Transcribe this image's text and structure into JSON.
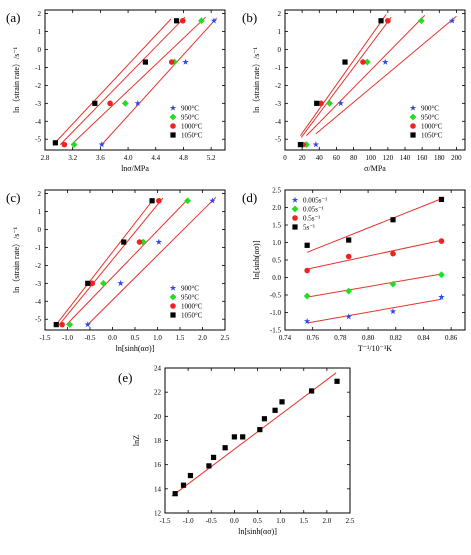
{
  "colors": {
    "fit_line": "#e8322b",
    "axis": "#000000",
    "series_blue": "#3344ee",
    "series_green": "#22dd22",
    "series_red": "#ee2222",
    "series_black": "#000000"
  },
  "chart_data": [
    {
      "id": "a",
      "type": "scatter",
      "panel_label": "(a)",
      "xlabel": "lnσ/MPa",
      "ylabel": "ln（strain rate）/s⁻¹",
      "xlim": [
        2.8,
        5.4
      ],
      "ylim": [
        -5.6,
        2.2
      ],
      "xticks": [
        2.8,
        3.2,
        3.6,
        4.0,
        4.4,
        4.8,
        5.2
      ],
      "xtick_labels": [
        "2.8",
        "3.2",
        "3.6",
        "4.0",
        "4.4",
        "4.8",
        "5.2"
      ],
      "yticks": [
        -5,
        -4,
        -3,
        -2,
        -1,
        0,
        1,
        2
      ],
      "ytick_labels": [
        "-5",
        "-4",
        "-3",
        "-2",
        "-1",
        "0",
        "1",
        "2"
      ],
      "legend_position": "bottom-right",
      "series": [
        {
          "name": "900°C",
          "color": "#3344ee",
          "marker": "star",
          "x": [
            3.62,
            4.14,
            4.83,
            5.24
          ],
          "y": [
            -5.3,
            -3.0,
            -0.7,
            1.6
          ],
          "fit": [
            [
              3.62,
              -5.3
            ],
            [
              5.28,
              1.75
            ]
          ]
        },
        {
          "name": "950°C",
          "color": "#22dd22",
          "marker": "diamond",
          "x": [
            3.22,
            3.96,
            4.67,
            5.06
          ],
          "y": [
            -5.3,
            -3.0,
            -0.7,
            1.6
          ],
          "fit": [
            [
              3.18,
              -5.3
            ],
            [
              5.12,
              1.8
            ]
          ]
        },
        {
          "name": "1000°C",
          "color": "#ee2222",
          "marker": "circle",
          "x": [
            3.08,
            3.74,
            4.63,
            4.79
          ],
          "y": [
            -5.3,
            -3.0,
            -0.7,
            1.6
          ],
          "fit": [
            [
              3.02,
              -5.3
            ],
            [
              4.82,
              1.8
            ]
          ]
        },
        {
          "name": "1050°C",
          "color": "#000000",
          "marker": "square",
          "x": [
            2.95,
            3.52,
            4.25,
            4.7
          ],
          "y": [
            -5.2,
            -3.0,
            -0.7,
            1.6
          ],
          "fit": [
            [
              2.92,
              -5.3
            ],
            [
              4.62,
              1.7
            ]
          ]
        }
      ]
    },
    {
      "id": "b",
      "type": "scatter",
      "panel_label": "(b)",
      "xlabel": "σ/MPa",
      "ylabel": "ln（strain rate）/s⁻¹",
      "xlim": [
        0,
        210
      ],
      "ylim": [
        -5.6,
        2.2
      ],
      "xticks": [
        0,
        20,
        40,
        60,
        80,
        100,
        120,
        140,
        160,
        180,
        200
      ],
      "xtick_labels": [
        "0",
        "20",
        "40",
        "60",
        "80",
        "100",
        "120",
        "140",
        "160",
        "180",
        "200"
      ],
      "yticks": [
        -5,
        -4,
        -3,
        -2,
        -1,
        0,
        1,
        2
      ],
      "ytick_labels": [
        "-5",
        "-4",
        "-3",
        "-2",
        "-1",
        "0",
        "1",
        "2"
      ],
      "legend_position": "bottom-right",
      "series": [
        {
          "name": "900°C",
          "color": "#3344ee",
          "marker": "star",
          "x": [
            36,
            65,
            117,
            195
          ],
          "y": [
            -5.3,
            -3.0,
            -0.7,
            1.6
          ],
          "fit": [
            [
              36,
              -4.7
            ],
            [
              200,
              1.85
            ]
          ]
        },
        {
          "name": "950°C",
          "color": "#22dd22",
          "marker": "diamond",
          "x": [
            25,
            52,
            96,
            159
          ],
          "y": [
            -5.3,
            -3.0,
            -0.7,
            1.6
          ],
          "fit": [
            [
              25,
              -4.8
            ],
            [
              163,
              1.9
            ]
          ]
        },
        {
          "name": "1000°C",
          "color": "#ee2222",
          "marker": "circle",
          "x": [
            21,
            42,
            91,
            120
          ],
          "y": [
            -5.3,
            -3.0,
            -0.7,
            1.6
          ],
          "fit": [
            [
              19,
              -4.9
            ],
            [
              124,
              1.8
            ]
          ]
        },
        {
          "name": "1050°C",
          "color": "#000000",
          "marker": "square",
          "x": [
            18,
            37,
            70,
            112
          ],
          "y": [
            -5.3,
            -3.0,
            -0.7,
            1.6
          ],
          "fit": [
            [
              18,
              -4.8
            ],
            [
              118,
              1.95
            ]
          ]
        }
      ]
    },
    {
      "id": "c",
      "type": "scatter",
      "panel_label": "(c)",
      "xlabel": "ln[sinh(ασ)]",
      "ylabel": "ln（strain rate）/s⁻¹",
      "xlim": [
        -1.5,
        2.5
      ],
      "ylim": [
        -5.6,
        2.2
      ],
      "xticks": [
        -1.5,
        -1.0,
        -0.5,
        0.0,
        0.5,
        1.0,
        1.5,
        2.0,
        2.5
      ],
      "xtick_labels": [
        "-1.5",
        "-1.0",
        "-0.5",
        "0.0",
        "0.5",
        "1.0",
        "1.5",
        "2.0",
        "2.5"
      ],
      "yticks": [
        -5,
        -4,
        -3,
        -2,
        -1,
        0,
        1,
        2
      ],
      "ytick_labels": [
        "-5",
        "-4",
        "-3",
        "-2",
        "-1",
        "0",
        "1",
        "2"
      ],
      "legend_position": "bottom-right",
      "series": [
        {
          "name": "900°C",
          "color": "#3344ee",
          "marker": "star",
          "x": [
            -0.55,
            0.18,
            1.03,
            2.22
          ],
          "y": [
            -5.3,
            -3.0,
            -0.7,
            1.6
          ],
          "fit": [
            [
              -0.55,
              -5.3
            ],
            [
              2.3,
              1.8
            ]
          ]
        },
        {
          "name": "950°C",
          "color": "#22dd22",
          "marker": "diamond",
          "x": [
            -0.95,
            -0.2,
            0.68,
            1.67
          ],
          "y": [
            -5.3,
            -3.0,
            -0.7,
            1.6
          ],
          "fit": [
            [
              -1.02,
              -5.3
            ],
            [
              1.68,
              1.7
            ]
          ]
        },
        {
          "name": "1000°C",
          "color": "#ee2222",
          "marker": "circle",
          "x": [
            -1.12,
            -0.45,
            0.6,
            1.03
          ],
          "y": [
            -5.3,
            -3.0,
            -0.7,
            1.6
          ],
          "fit": [
            [
              -1.18,
              -5.3
            ],
            [
              1.12,
              1.75
            ]
          ]
        },
        {
          "name": "1050°C",
          "color": "#000000",
          "marker": "square",
          "x": [
            -1.25,
            -0.55,
            0.25,
            0.88
          ],
          "y": [
            -5.3,
            -3.0,
            -0.7,
            1.6
          ],
          "fit": [
            [
              -1.25,
              -5.3
            ],
            [
              0.9,
              1.65
            ]
          ]
        }
      ]
    },
    {
      "id": "d",
      "type": "scatter",
      "panel_label": "(d)",
      "xlabel": "T⁻¹/10⁻³K",
      "ylabel": "ln[sinh(ασ)]",
      "xlim": [
        0.74,
        0.87
      ],
      "ylim": [
        -1.5,
        2.5
      ],
      "xticks": [
        0.74,
        0.76,
        0.78,
        0.8,
        0.82,
        0.84,
        0.86
      ],
      "xtick_labels": [
        "0.74",
        "0.76",
        "0.78",
        "0.80",
        "0.82",
        "0.84",
        "0.86"
      ],
      "yticks": [
        -1.5,
        -1.0,
        -0.5,
        0.0,
        0.5,
        1.0,
        1.5,
        2.0,
        2.5
      ],
      "ytick_labels": [
        "-1.5",
        "-1.0",
        "-0.5",
        "0.0",
        "0.5",
        "1.0",
        "1.5",
        "2.0",
        "2.5"
      ],
      "legend_position": "top-left",
      "series": [
        {
          "name": "0.005s⁻¹",
          "color": "#3344ee",
          "marker": "star",
          "x": [
            0.756,
            0.786,
            0.818,
            0.853
          ],
          "y": [
            -1.25,
            -1.12,
            -0.97,
            -0.56
          ],
          "fit": [
            [
              0.756,
              -1.3
            ],
            [
              0.853,
              -0.62
            ]
          ]
        },
        {
          "name": "0.05s⁻¹",
          "color": "#22dd22",
          "marker": "diamond",
          "x": [
            0.756,
            0.786,
            0.818,
            0.853
          ],
          "y": [
            -0.53,
            -0.39,
            -0.19,
            0.08
          ],
          "fit": [
            [
              0.756,
              -0.56
            ],
            [
              0.853,
              0.1
            ]
          ]
        },
        {
          "name": "0.5s⁻¹",
          "color": "#ee2222",
          "marker": "circle",
          "x": [
            0.756,
            0.786,
            0.818,
            0.853
          ],
          "y": [
            0.2,
            0.6,
            0.68,
            1.04
          ],
          "fit": [
            [
              0.756,
              0.24
            ],
            [
              0.853,
              1.06
            ]
          ]
        },
        {
          "name": "5s⁻¹",
          "color": "#000000",
          "marker": "square",
          "x": [
            0.756,
            0.786,
            0.818,
            0.853
          ],
          "y": [
            0.92,
            1.07,
            1.65,
            2.23
          ],
          "fit": [
            [
              0.756,
              0.72
            ],
            [
              0.853,
              2.25
            ]
          ]
        }
      ]
    },
    {
      "id": "e",
      "type": "scatter",
      "panel_label": "(e)",
      "xlabel": "ln[sinh(ασ)]",
      "ylabel": "lnZ",
      "xlim": [
        -1.5,
        2.5
      ],
      "ylim": [
        12,
        24
      ],
      "xticks": [
        -1.5,
        -1.0,
        -0.5,
        0.0,
        0.5,
        1.0,
        1.5,
        2.0,
        2.5
      ],
      "xtick_labels": [
        "-1.5",
        "-1.0",
        "-0.5",
        "0.0",
        "0.5",
        "1.0",
        "1.5",
        "2.0",
        "2.5"
      ],
      "yticks": [
        12,
        14,
        16,
        18,
        20,
        22,
        24
      ],
      "ytick_labels": [
        "12",
        "14",
        "16",
        "18",
        "20",
        "22",
        "24"
      ],
      "legend_position": "none",
      "series": [
        {
          "color": "#000000",
          "marker": "square",
          "x": [
            -1.28,
            -1.1,
            -0.95,
            -0.55,
            -0.45,
            -0.2,
            0.0,
            0.18,
            0.55,
            0.65,
            0.88,
            1.03,
            1.67,
            2.22
          ],
          "y": [
            13.6,
            14.3,
            15.1,
            15.9,
            16.6,
            17.4,
            18.3,
            18.3,
            18.9,
            19.8,
            20.5,
            21.2,
            22.1,
            22.9
          ],
          "fit": [
            [
              -1.35,
              13.4
            ],
            [
              2.2,
              23.6
            ]
          ]
        }
      ]
    }
  ]
}
